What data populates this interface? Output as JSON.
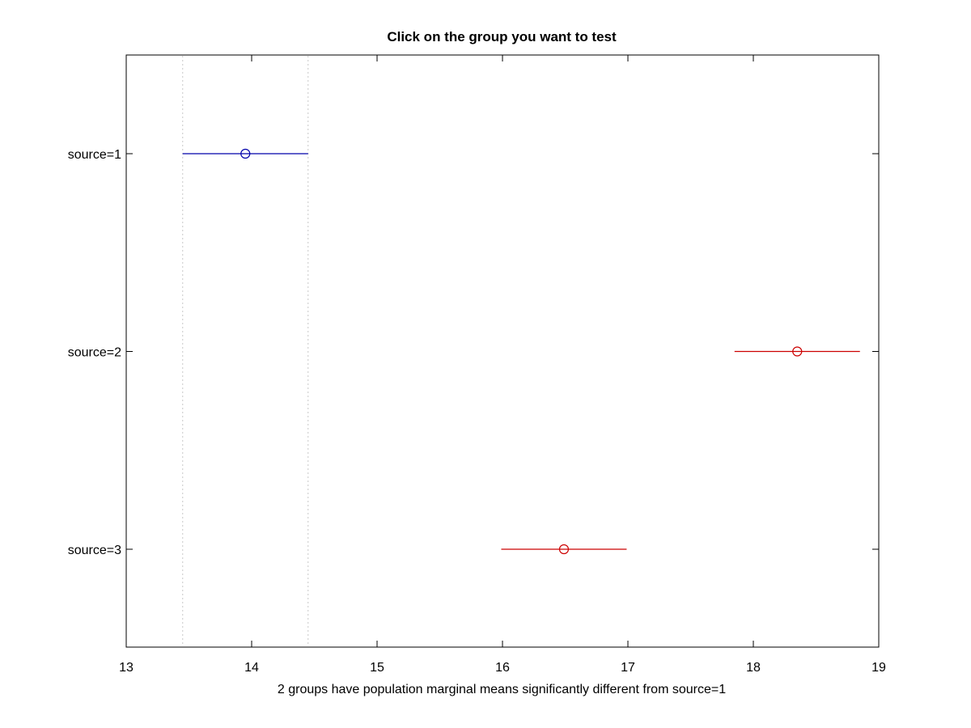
{
  "chart_data": {
    "type": "scatter",
    "subtype": "multiple-comparison-interval-plot",
    "title": "Click on the group you want to test",
    "xlabel": "2 groups have population marginal means significantly different from source=1",
    "ylabel": "",
    "xlim": [
      13,
      19
    ],
    "x_ticks": [
      "13",
      "14",
      "15",
      "16",
      "17",
      "18",
      "19"
    ],
    "grid": false,
    "reference_lines_x": [
      13.45,
      14.45
    ],
    "groups": [
      {
        "label": "source=1",
        "mean": 13.95,
        "lower": 13.45,
        "upper": 14.45,
        "color": "#0000aa",
        "selected": true
      },
      {
        "label": "source=2",
        "mean": 18.35,
        "lower": 17.85,
        "upper": 18.85,
        "color": "#cc0000",
        "selected": false
      },
      {
        "label": "source=3",
        "mean": 16.49,
        "lower": 15.99,
        "upper": 16.99,
        "color": "#cc0000",
        "selected": false
      }
    ]
  }
}
